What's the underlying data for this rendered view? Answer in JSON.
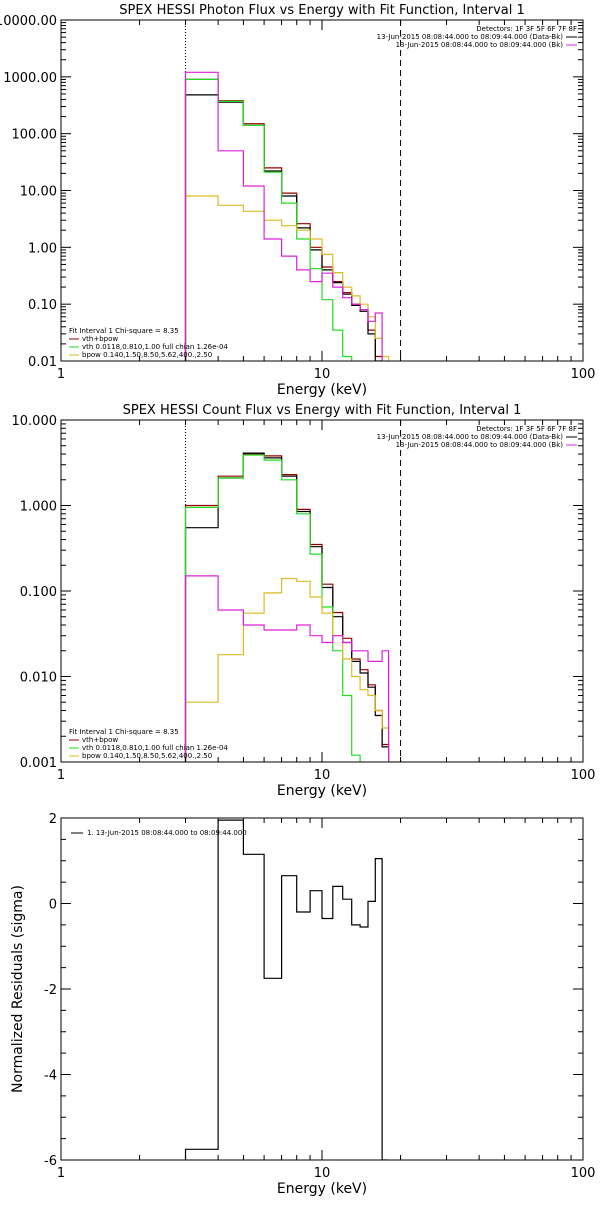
{
  "colors": {
    "background": "#ffffff",
    "axes": "#000000",
    "total": "#990000",
    "data": "#000000",
    "vth": "#22dd22",
    "bpow": "#ddbb22",
    "background_model": "#dd22dd"
  },
  "chart_data": [
    {
      "type": "line",
      "title": "SPEX HESSI Photon Flux vs Energy with Fit Function, Interval 1",
      "xlabel": "Energy (keV)",
      "ylabel": "",
      "xscale": "log",
      "yscale": "log",
      "xlim": [
        1,
        100
      ],
      "ylim": [
        0.01,
        10000
      ],
      "xticks": [
        1,
        10,
        100
      ],
      "xtick_labels": [
        "1",
        "10",
        "100"
      ],
      "yticks": [
        0.01,
        0.1,
        1,
        10,
        100,
        1000,
        10000
      ],
      "ytick_labels": [
        "0.01",
        "0.10",
        "1.00",
        "10.00",
        "100.00",
        "1000.00",
        "10000.00"
      ],
      "vlines": [
        {
          "x": 3,
          "style": "dotted"
        },
        {
          "x": 20,
          "style": "dashed"
        }
      ],
      "bin_edges": [
        3,
        4,
        5,
        6,
        7,
        8,
        9,
        10,
        11,
        12,
        13,
        14,
        15,
        16,
        17,
        18,
        20,
        21,
        22
      ],
      "legend_topright": {
        "detectors": "Detectors: 1F 3F 5F 6F 7F 8F",
        "lines": [
          {
            "text": "13-Jun-2015 08:08:44.000 to 08:09:44.000 (Data-Bk)",
            "color": "#000000"
          },
          {
            "text": "13-Jun-2015 08:08:44.000 to 08:09:44.000 (Bk)",
            "color": "#dd22dd"
          }
        ]
      },
      "legend_bottomleft": {
        "header": "Fit Interval  1    Chi-square = 8.35",
        "lines": [
          {
            "text": "vth+bpow",
            "color": "#990000"
          },
          {
            "text": "vth 0.0118,0.810,1.00  full chian 1.26e-04",
            "color": "#22dd22"
          },
          {
            "text": "bpow 0.140,1.50,8.50,5.62,400.,2.50",
            "color": "#ddbb22"
          }
        ]
      },
      "series": [
        {
          "name": "vth+bpow",
          "color": "#990000",
          "values": [
            900,
            380,
            150,
            25,
            9,
            2.6,
            1.0,
            0.45,
            0.25,
            0.16,
            0.1,
            0.08,
            0.035,
            0.012
          ]
        },
        {
          "name": "Data-Bk",
          "color": "#000000",
          "values": [
            480,
            360,
            140,
            22,
            8,
            2.2,
            0.9,
            0.4,
            0.24,
            0.15,
            0.095,
            0.075,
            0.03,
            0.01
          ]
        },
        {
          "name": "vth",
          "color": "#22dd22",
          "values": [
            900,
            370,
            140,
            21,
            6,
            1.4,
            0.42,
            0.12,
            0.035,
            0.012,
            0.005
          ]
        },
        {
          "name": "bpow",
          "color": "#ddbb22",
          "values": [
            8,
            5.5,
            4.3,
            3,
            2.4,
            2,
            1.4,
            0.75,
            0.36,
            0.2,
            0.14,
            0.1,
            0.06,
            0.025,
            0.012
          ]
        },
        {
          "name": "Bk",
          "color": "#dd22dd",
          "values": [
            1200,
            50,
            12,
            1.4,
            0.7,
            0.4,
            0.25,
            0.35,
            0.2,
            0.13,
            0.1,
            0.08,
            0.05,
            0.07
          ]
        }
      ]
    },
    {
      "type": "line",
      "title": "SPEX HESSI Count Flux vs Energy with Fit Function, Interval 1",
      "xlabel": "Energy (keV)",
      "ylabel": "",
      "xscale": "log",
      "yscale": "log",
      "xlim": [
        1,
        100
      ],
      "ylim": [
        0.001,
        10
      ],
      "xticks": [
        1,
        10,
        100
      ],
      "xtick_labels": [
        "1",
        "10",
        "100"
      ],
      "yticks": [
        0.001,
        0.01,
        0.1,
        1,
        10
      ],
      "ytick_labels": [
        "0.001",
        "0.010",
        "0.100",
        "1.000",
        "10.000"
      ],
      "vlines": [
        {
          "x": 3,
          "style": "dotted"
        },
        {
          "x": 20,
          "style": "dashed"
        }
      ],
      "bin_edges": [
        3,
        4,
        5,
        6,
        7,
        8,
        9,
        10,
        11,
        12,
        13,
        14,
        15,
        16,
        17,
        18,
        20,
        21,
        22
      ],
      "legend_topright": {
        "detectors": "Detectors: 1F 3F 5F 6F 7F 8F",
        "lines": [
          {
            "text": "13-Jun-2015 08:08:44.000 to 08:09:44.000 (Data-Bk)",
            "color": "#000000"
          },
          {
            "text": "13-Jun-2015 08:08:44.000 to 08:09:44.000 (Bk)",
            "color": "#dd22dd"
          }
        ]
      },
      "legend_bottomleft": {
        "header": "Fit Interval  1    Chi-square = 8.35",
        "lines": [
          {
            "text": "vth+bpow",
            "color": "#990000"
          },
          {
            "text": "vth 0.0118,0.810,1.00  full chian 1.26e-04",
            "color": "#22dd22"
          },
          {
            "text": "bpow 0.140,1.50,8.50,5.62,400.,2.50",
            "color": "#ddbb22"
          }
        ]
      },
      "series": [
        {
          "name": "vth+bpow",
          "color": "#990000",
          "values": [
            1.0,
            2.2,
            4.0,
            3.8,
            2.3,
            0.9,
            0.35,
            0.12,
            0.056,
            0.028,
            0.016,
            0.012,
            0.008,
            0.004,
            0.0016
          ]
        },
        {
          "name": "Data-Bk",
          "color": "#000000",
          "values": [
            0.55,
            2.1,
            4.1,
            3.6,
            2.2,
            0.85,
            0.33,
            0.11,
            0.05,
            0.025,
            0.015,
            0.011,
            0.0075,
            0.0035,
            0.0015
          ]
        },
        {
          "name": "vth",
          "color": "#22dd22",
          "values": [
            0.95,
            2.1,
            3.9,
            3.4,
            2.0,
            0.8,
            0.27,
            0.065,
            0.02,
            0.006,
            0.0012
          ]
        },
        {
          "name": "bpow",
          "color": "#ddbb22",
          "values": [
            0.005,
            0.018,
            0.055,
            0.095,
            0.14,
            0.13,
            0.085,
            0.055,
            0.03,
            0.016,
            0.01,
            0.007,
            0.006,
            0.004,
            0.0025,
            0.001
          ]
        },
        {
          "name": "Bk",
          "color": "#dd22dd",
          "values": [
            0.15,
            0.06,
            0.04,
            0.035,
            0.035,
            0.04,
            0.03,
            0.025,
            0.03,
            0.025,
            0.02,
            0.02,
            0.015,
            0.015,
            0.02
          ]
        }
      ]
    },
    {
      "type": "line",
      "title": "",
      "xlabel": "Energy (keV)",
      "ylabel": "Normalized Residuals (sigma)",
      "xscale": "log",
      "yscale": "linear",
      "xlim": [
        1,
        100
      ],
      "ylim": [
        -6,
        2
      ],
      "xticks": [
        1,
        10,
        100
      ],
      "xtick_labels": [
        "1",
        "10",
        "100"
      ],
      "yticks": [
        -6,
        -4,
        -2,
        0,
        2
      ],
      "ytick_labels": [
        "-6",
        "-4",
        "-2",
        "0",
        "2"
      ],
      "legend": {
        "text": "1. 13-Jun-2015 08:08:44.000 to 08:09:44.000",
        "color": "#000000"
      },
      "bin_edges": [
        3,
        4,
        5,
        6,
        7,
        8,
        9,
        10,
        11,
        12,
        13,
        14,
        15,
        16,
        17,
        18,
        20
      ],
      "series": [
        {
          "name": "1. 13-Jun-2015 08:08:44.000 to 08:09:44.000",
          "color": "#000000",
          "values": [
            -5.75,
            1.95,
            1.15,
            -1.75,
            0.65,
            -0.2,
            0.3,
            -0.35,
            0.4,
            0.1,
            -0.5,
            -0.55,
            0.05,
            1.05,
            -6
          ]
        }
      ]
    }
  ]
}
